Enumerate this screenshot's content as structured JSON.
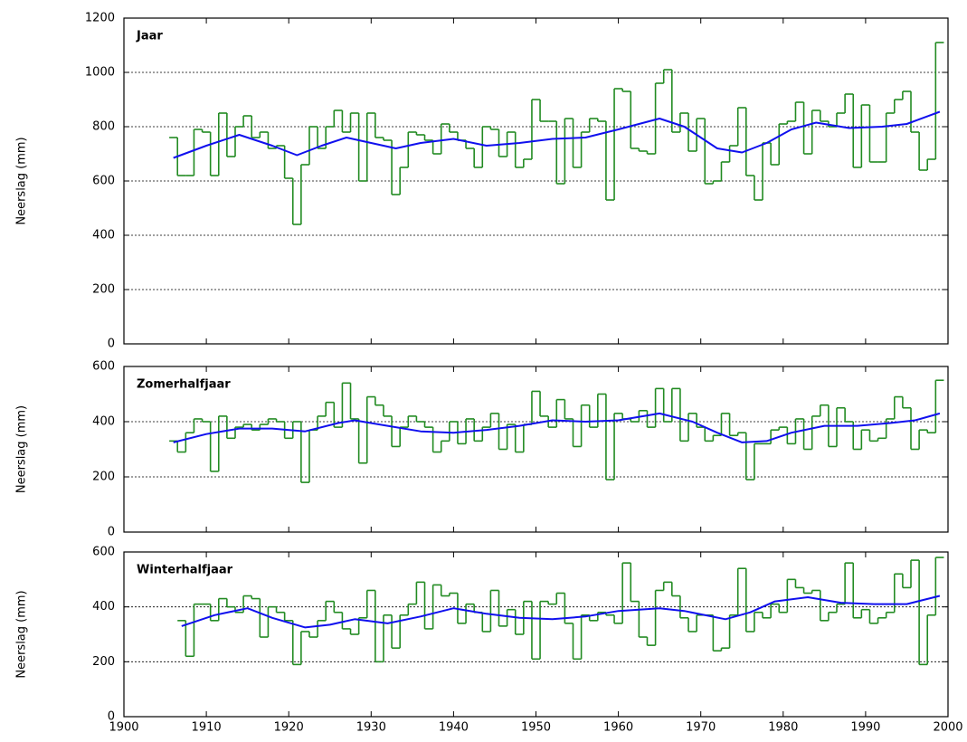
{
  "chart_data": [
    {
      "type": "line",
      "title": "Jaar",
      "ylabel": "Neerslag (mm)",
      "xlim": [
        1900,
        2000
      ],
      "xticks": [
        1900,
        1910,
        1920,
        1930,
        1940,
        1950,
        1960,
        1970,
        1980,
        1990,
        2000
      ],
      "ylim": [
        0,
        1200
      ],
      "yticks": [
        0,
        200,
        400,
        600,
        800,
        1000,
        1200
      ],
      "grid": true,
      "series": [
        {
          "type": "step",
          "color": "#228b22",
          "x": [
            1906,
            1907,
            1908,
            1909,
            1910,
            1911,
            1912,
            1913,
            1914,
            1915,
            1916,
            1917,
            1918,
            1919,
            1920,
            1921,
            1922,
            1923,
            1924,
            1925,
            1926,
            1927,
            1928,
            1929,
            1930,
            1931,
            1932,
            1933,
            1934,
            1935,
            1936,
            1937,
            1938,
            1939,
            1940,
            1941,
            1942,
            1943,
            1944,
            1945,
            1946,
            1947,
            1948,
            1949,
            1950,
            1951,
            1952,
            1953,
            1954,
            1955,
            1956,
            1957,
            1958,
            1959,
            1960,
            1961,
            1962,
            1963,
            1964,
            1965,
            1966,
            1967,
            1968,
            1969,
            1970,
            1971,
            1972,
            1973,
            1974,
            1975,
            1976,
            1977,
            1978,
            1979,
            1980,
            1981,
            1982,
            1983,
            1984,
            1985,
            1986,
            1987,
            1988,
            1989,
            1990,
            1991,
            1992,
            1993,
            1994,
            1995,
            1996,
            1997,
            1998,
            1999
          ],
          "values": [
            760,
            620,
            620,
            790,
            780,
            620,
            850,
            690,
            800,
            840,
            760,
            780,
            720,
            730,
            610,
            440,
            660,
            800,
            720,
            800,
            860,
            780,
            850,
            600,
            850,
            760,
            750,
            550,
            650,
            780,
            770,
            750,
            700,
            810,
            780,
            750,
            720,
            650,
            800,
            790,
            690,
            780,
            650,
            680,
            900,
            820,
            820,
            590,
            830,
            650,
            780,
            830,
            820,
            530,
            940,
            930,
            720,
            710,
            700,
            960,
            1010,
            780,
            850,
            710,
            830,
            590,
            600,
            670,
            730,
            870,
            620,
            530,
            740,
            660,
            810,
            820,
            890,
            700,
            860,
            820,
            800,
            850,
            920,
            650,
            880,
            670,
            670,
            850,
            900,
            930,
            780,
            640,
            680,
            1110
          ]
        },
        {
          "type": "line",
          "color": "#1010ee",
          "x": [
            1906,
            1910,
            1914,
            1918,
            1921,
            1924,
            1927,
            1930,
            1933,
            1936,
            1940,
            1944,
            1948,
            1952,
            1956,
            1960,
            1965,
            1968,
            1972,
            1975,
            1978,
            1981,
            1984,
            1988,
            1992,
            1995,
            1999
          ],
          "values": [
            685,
            730,
            770,
            730,
            695,
            730,
            760,
            740,
            720,
            740,
            755,
            730,
            740,
            755,
            760,
            790,
            830,
            800,
            720,
            705,
            740,
            790,
            815,
            795,
            800,
            810,
            855
          ]
        }
      ]
    },
    {
      "type": "line",
      "title": "Zomerhalfjaar",
      "ylabel": "Neerslag (mm)",
      "xlim": [
        1900,
        2000
      ],
      "xticks": [
        1900,
        1910,
        1920,
        1930,
        1940,
        1950,
        1960,
        1970,
        1980,
        1990,
        2000
      ],
      "ylim": [
        0,
        600
      ],
      "yticks": [
        0,
        200,
        400,
        600
      ],
      "grid": true,
      "series": [
        {
          "type": "step",
          "color": "#228b22",
          "x": [
            1906,
            1907,
            1908,
            1909,
            1910,
            1911,
            1912,
            1913,
            1914,
            1915,
            1916,
            1917,
            1918,
            1919,
            1920,
            1921,
            1922,
            1923,
            1924,
            1925,
            1926,
            1927,
            1928,
            1929,
            1930,
            1931,
            1932,
            1933,
            1934,
            1935,
            1936,
            1937,
            1938,
            1939,
            1940,
            1941,
            1942,
            1943,
            1944,
            1945,
            1946,
            1947,
            1948,
            1949,
            1950,
            1951,
            1952,
            1953,
            1954,
            1955,
            1956,
            1957,
            1958,
            1959,
            1960,
            1961,
            1962,
            1963,
            1964,
            1965,
            1966,
            1967,
            1968,
            1969,
            1970,
            1971,
            1972,
            1973,
            1974,
            1975,
            1976,
            1977,
            1978,
            1979,
            1980,
            1981,
            1982,
            1983,
            1984,
            1985,
            1986,
            1987,
            1988,
            1989,
            1990,
            1991,
            1992,
            1993,
            1994,
            1995,
            1996,
            1997,
            1998,
            1999
          ],
          "values": [
            330,
            290,
            360,
            410,
            400,
            220,
            420,
            340,
            380,
            390,
            370,
            390,
            410,
            400,
            340,
            400,
            180,
            370,
            420,
            470,
            380,
            540,
            410,
            250,
            490,
            460,
            420,
            310,
            380,
            420,
            400,
            380,
            290,
            330,
            400,
            320,
            410,
            330,
            380,
            430,
            300,
            390,
            290,
            390,
            510,
            420,
            380,
            480,
            410,
            310,
            460,
            380,
            500,
            190,
            430,
            410,
            400,
            440,
            380,
            520,
            400,
            520,
            330,
            430,
            380,
            330,
            350,
            430,
            350,
            360,
            190,
            320,
            320,
            370,
            380,
            320,
            410,
            300,
            420,
            460,
            310,
            450,
            400,
            300,
            370,
            330,
            340,
            410,
            490,
            450,
            300,
            370,
            360,
            550
          ]
        },
        {
          "type": "line",
          "color": "#1010ee",
          "x": [
            1906,
            1910,
            1914,
            1918,
            1922,
            1926,
            1928,
            1932,
            1936,
            1940,
            1944,
            1948,
            1952,
            1956,
            1960,
            1965,
            1969,
            1972,
            1975,
            1978,
            1981,
            1985,
            1989,
            1993,
            1996,
            1999
          ],
          "values": [
            325,
            355,
            375,
            375,
            365,
            395,
            405,
            385,
            365,
            360,
            370,
            385,
            405,
            400,
            405,
            430,
            400,
            360,
            325,
            330,
            360,
            385,
            385,
            395,
            405,
            430
          ]
        }
      ]
    },
    {
      "type": "line",
      "title": "Winterhalfjaar",
      "ylabel": "Neerslag (mm)",
      "xlim": [
        1900,
        2000
      ],
      "xticks": [
        1900,
        1910,
        1920,
        1930,
        1940,
        1950,
        1960,
        1970,
        1980,
        1990,
        2000
      ],
      "ylim": [
        0,
        600
      ],
      "yticks": [
        0,
        200,
        400,
        600
      ],
      "grid": true,
      "series": [
        {
          "type": "step",
          "color": "#228b22",
          "x": [
            1907,
            1908,
            1909,
            1910,
            1911,
            1912,
            1913,
            1914,
            1915,
            1916,
            1917,
            1918,
            1919,
            1920,
            1921,
            1922,
            1923,
            1924,
            1925,
            1926,
            1927,
            1928,
            1929,
            1930,
            1931,
            1932,
            1933,
            1934,
            1935,
            1936,
            1937,
            1938,
            1939,
            1940,
            1941,
            1942,
            1943,
            1944,
            1945,
            1946,
            1947,
            1948,
            1949,
            1950,
            1951,
            1952,
            1953,
            1954,
            1955,
            1956,
            1957,
            1958,
            1959,
            1960,
            1961,
            1962,
            1963,
            1964,
            1965,
            1966,
            1967,
            1968,
            1969,
            1970,
            1971,
            1972,
            1973,
            1974,
            1975,
            1976,
            1977,
            1978,
            1979,
            1980,
            1981,
            1982,
            1983,
            1984,
            1985,
            1986,
            1987,
            1988,
            1989,
            1990,
            1991,
            1992,
            1993,
            1994,
            1995,
            1996,
            1997,
            1998,
            1999
          ],
          "values": [
            350,
            220,
            410,
            410,
            350,
            430,
            400,
            380,
            440,
            430,
            290,
            400,
            380,
            350,
            190,
            310,
            290,
            350,
            420,
            380,
            320,
            300,
            360,
            460,
            200,
            370,
            250,
            370,
            410,
            490,
            320,
            480,
            440,
            450,
            340,
            410,
            380,
            310,
            460,
            330,
            390,
            300,
            420,
            210,
            420,
            410,
            450,
            340,
            210,
            370,
            350,
            380,
            370,
            340,
            560,
            420,
            290,
            260,
            460,
            490,
            440,
            360,
            310,
            370,
            370,
            240,
            250,
            370,
            540,
            310,
            380,
            360,
            410,
            380,
            500,
            470,
            450,
            460,
            350,
            380,
            410,
            560,
            360,
            390,
            340,
            360,
            380,
            520,
            470,
            570,
            190,
            370,
            580
          ]
        },
        {
          "type": "line",
          "color": "#1010ee",
          "x": [
            1907,
            1911,
            1915,
            1918,
            1922,
            1925,
            1928,
            1932,
            1936,
            1940,
            1944,
            1948,
            1952,
            1956,
            1960,
            1965,
            1968,
            1973,
            1976,
            1979,
            1983,
            1987,
            1991,
            1995,
            1999
          ],
          "values": [
            330,
            370,
            395,
            360,
            325,
            335,
            355,
            340,
            365,
            395,
            375,
            360,
            355,
            365,
            385,
            395,
            385,
            355,
            380,
            420,
            435,
            415,
            410,
            410,
            440
          ]
        }
      ]
    }
  ]
}
